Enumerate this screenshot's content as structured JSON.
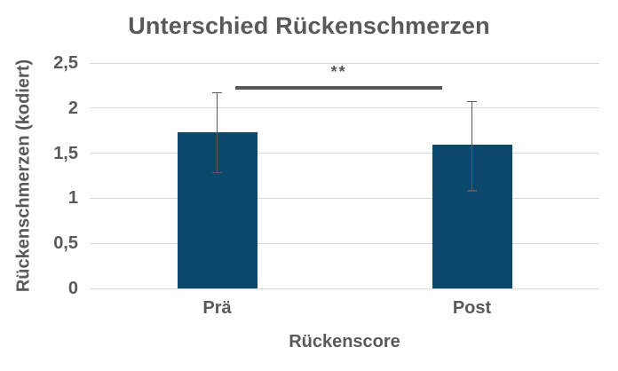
{
  "colors": {
    "bar": "#0b486b",
    "text": "#595959",
    "gridline": "#d9d9d9",
    "error_bar": "#595959",
    "significance": "#595959"
  },
  "chart_data": {
    "type": "bar",
    "title": "Unterschied Rückenschmerzen",
    "xlabel": "Rückenscore",
    "ylabel": "Rückenschmerzen (kodiert)",
    "categories": [
      "Prä",
      "Post"
    ],
    "values": [
      1.73,
      1.59
    ],
    "error_upper": [
      2.18,
      2.08
    ],
    "error_lower": [
      1.28,
      1.08
    ],
    "ylim": [
      0,
      2.5
    ],
    "yticks": [
      {
        "value": 2.5,
        "label": "2,5"
      },
      {
        "value": 2.0,
        "label": "2"
      },
      {
        "value": 1.5,
        "label": "1,5"
      },
      {
        "value": 1.0,
        "label": "1"
      },
      {
        "value": 0.5,
        "label": "0,5"
      },
      {
        "value": 0.0,
        "label": "0"
      }
    ],
    "grid": true,
    "legend_position": "none",
    "decimal_separator": ",",
    "bar_center_fractions": [
      0.25,
      0.75
    ],
    "annotation": {
      "text": "**",
      "x_from": 0.286,
      "x_to": 0.692,
      "y_value": 2.22
    }
  }
}
